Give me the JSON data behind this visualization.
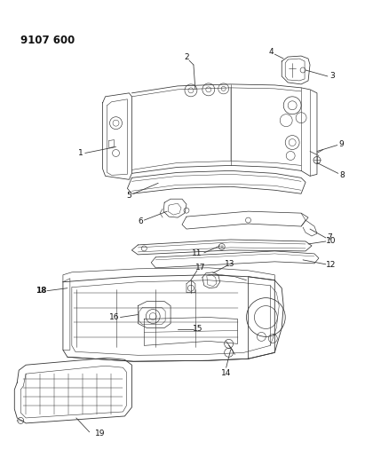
{
  "title": "9107 600",
  "background_color": "#ffffff",
  "fig_width": 4.11,
  "fig_height": 5.33,
  "dpi": 100,
  "line_color": "#333333",
  "label_color": "#111111",
  "bold_numbers": [
    18
  ],
  "label_fontsize": 6.5,
  "title_fontsize": 8.5
}
